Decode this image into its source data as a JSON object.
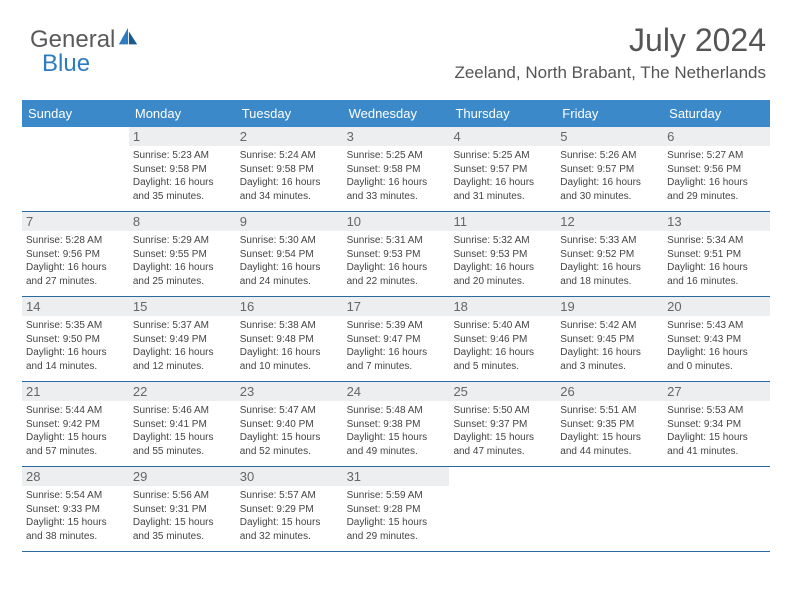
{
  "logo": {
    "part1": "General",
    "part2": "Blue"
  },
  "title": "July 2024",
  "location": "Zeeland, North Brabant, The Netherlands",
  "colors": {
    "header_bg": "#3b89c9",
    "header_text": "#ffffff",
    "daynum_bg": "#eceeef",
    "week_border": "#2a6aa0",
    "text": "#444444"
  },
  "dayNames": [
    "Sunday",
    "Monday",
    "Tuesday",
    "Wednesday",
    "Thursday",
    "Friday",
    "Saturday"
  ],
  "weeks": [
    [
      {
        "day": "",
        "sunrise": "",
        "sunset": "",
        "daylight": ""
      },
      {
        "day": "1",
        "sunrise": "Sunrise: 5:23 AM",
        "sunset": "Sunset: 9:58 PM",
        "daylight": "Daylight: 16 hours and 35 minutes."
      },
      {
        "day": "2",
        "sunrise": "Sunrise: 5:24 AM",
        "sunset": "Sunset: 9:58 PM",
        "daylight": "Daylight: 16 hours and 34 minutes."
      },
      {
        "day": "3",
        "sunrise": "Sunrise: 5:25 AM",
        "sunset": "Sunset: 9:58 PM",
        "daylight": "Daylight: 16 hours and 33 minutes."
      },
      {
        "day": "4",
        "sunrise": "Sunrise: 5:25 AM",
        "sunset": "Sunset: 9:57 PM",
        "daylight": "Daylight: 16 hours and 31 minutes."
      },
      {
        "day": "5",
        "sunrise": "Sunrise: 5:26 AM",
        "sunset": "Sunset: 9:57 PM",
        "daylight": "Daylight: 16 hours and 30 minutes."
      },
      {
        "day": "6",
        "sunrise": "Sunrise: 5:27 AM",
        "sunset": "Sunset: 9:56 PM",
        "daylight": "Daylight: 16 hours and 29 minutes."
      }
    ],
    [
      {
        "day": "7",
        "sunrise": "Sunrise: 5:28 AM",
        "sunset": "Sunset: 9:56 PM",
        "daylight": "Daylight: 16 hours and 27 minutes."
      },
      {
        "day": "8",
        "sunrise": "Sunrise: 5:29 AM",
        "sunset": "Sunset: 9:55 PM",
        "daylight": "Daylight: 16 hours and 25 minutes."
      },
      {
        "day": "9",
        "sunrise": "Sunrise: 5:30 AM",
        "sunset": "Sunset: 9:54 PM",
        "daylight": "Daylight: 16 hours and 24 minutes."
      },
      {
        "day": "10",
        "sunrise": "Sunrise: 5:31 AM",
        "sunset": "Sunset: 9:53 PM",
        "daylight": "Daylight: 16 hours and 22 minutes."
      },
      {
        "day": "11",
        "sunrise": "Sunrise: 5:32 AM",
        "sunset": "Sunset: 9:53 PM",
        "daylight": "Daylight: 16 hours and 20 minutes."
      },
      {
        "day": "12",
        "sunrise": "Sunrise: 5:33 AM",
        "sunset": "Sunset: 9:52 PM",
        "daylight": "Daylight: 16 hours and 18 minutes."
      },
      {
        "day": "13",
        "sunrise": "Sunrise: 5:34 AM",
        "sunset": "Sunset: 9:51 PM",
        "daylight": "Daylight: 16 hours and 16 minutes."
      }
    ],
    [
      {
        "day": "14",
        "sunrise": "Sunrise: 5:35 AM",
        "sunset": "Sunset: 9:50 PM",
        "daylight": "Daylight: 16 hours and 14 minutes."
      },
      {
        "day": "15",
        "sunrise": "Sunrise: 5:37 AM",
        "sunset": "Sunset: 9:49 PM",
        "daylight": "Daylight: 16 hours and 12 minutes."
      },
      {
        "day": "16",
        "sunrise": "Sunrise: 5:38 AM",
        "sunset": "Sunset: 9:48 PM",
        "daylight": "Daylight: 16 hours and 10 minutes."
      },
      {
        "day": "17",
        "sunrise": "Sunrise: 5:39 AM",
        "sunset": "Sunset: 9:47 PM",
        "daylight": "Daylight: 16 hours and 7 minutes."
      },
      {
        "day": "18",
        "sunrise": "Sunrise: 5:40 AM",
        "sunset": "Sunset: 9:46 PM",
        "daylight": "Daylight: 16 hours and 5 minutes."
      },
      {
        "day": "19",
        "sunrise": "Sunrise: 5:42 AM",
        "sunset": "Sunset: 9:45 PM",
        "daylight": "Daylight: 16 hours and 3 minutes."
      },
      {
        "day": "20",
        "sunrise": "Sunrise: 5:43 AM",
        "sunset": "Sunset: 9:43 PM",
        "daylight": "Daylight: 16 hours and 0 minutes."
      }
    ],
    [
      {
        "day": "21",
        "sunrise": "Sunrise: 5:44 AM",
        "sunset": "Sunset: 9:42 PM",
        "daylight": "Daylight: 15 hours and 57 minutes."
      },
      {
        "day": "22",
        "sunrise": "Sunrise: 5:46 AM",
        "sunset": "Sunset: 9:41 PM",
        "daylight": "Daylight: 15 hours and 55 minutes."
      },
      {
        "day": "23",
        "sunrise": "Sunrise: 5:47 AM",
        "sunset": "Sunset: 9:40 PM",
        "daylight": "Daylight: 15 hours and 52 minutes."
      },
      {
        "day": "24",
        "sunrise": "Sunrise: 5:48 AM",
        "sunset": "Sunset: 9:38 PM",
        "daylight": "Daylight: 15 hours and 49 minutes."
      },
      {
        "day": "25",
        "sunrise": "Sunrise: 5:50 AM",
        "sunset": "Sunset: 9:37 PM",
        "daylight": "Daylight: 15 hours and 47 minutes."
      },
      {
        "day": "26",
        "sunrise": "Sunrise: 5:51 AM",
        "sunset": "Sunset: 9:35 PM",
        "daylight": "Daylight: 15 hours and 44 minutes."
      },
      {
        "day": "27",
        "sunrise": "Sunrise: 5:53 AM",
        "sunset": "Sunset: 9:34 PM",
        "daylight": "Daylight: 15 hours and 41 minutes."
      }
    ],
    [
      {
        "day": "28",
        "sunrise": "Sunrise: 5:54 AM",
        "sunset": "Sunset: 9:33 PM",
        "daylight": "Daylight: 15 hours and 38 minutes."
      },
      {
        "day": "29",
        "sunrise": "Sunrise: 5:56 AM",
        "sunset": "Sunset: 9:31 PM",
        "daylight": "Daylight: 15 hours and 35 minutes."
      },
      {
        "day": "30",
        "sunrise": "Sunrise: 5:57 AM",
        "sunset": "Sunset: 9:29 PM",
        "daylight": "Daylight: 15 hours and 32 minutes."
      },
      {
        "day": "31",
        "sunrise": "Sunrise: 5:59 AM",
        "sunset": "Sunset: 9:28 PM",
        "daylight": "Daylight: 15 hours and 29 minutes."
      },
      {
        "day": "",
        "sunrise": "",
        "sunset": "",
        "daylight": ""
      },
      {
        "day": "",
        "sunrise": "",
        "sunset": "",
        "daylight": ""
      },
      {
        "day": "",
        "sunrise": "",
        "sunset": "",
        "daylight": ""
      }
    ]
  ]
}
